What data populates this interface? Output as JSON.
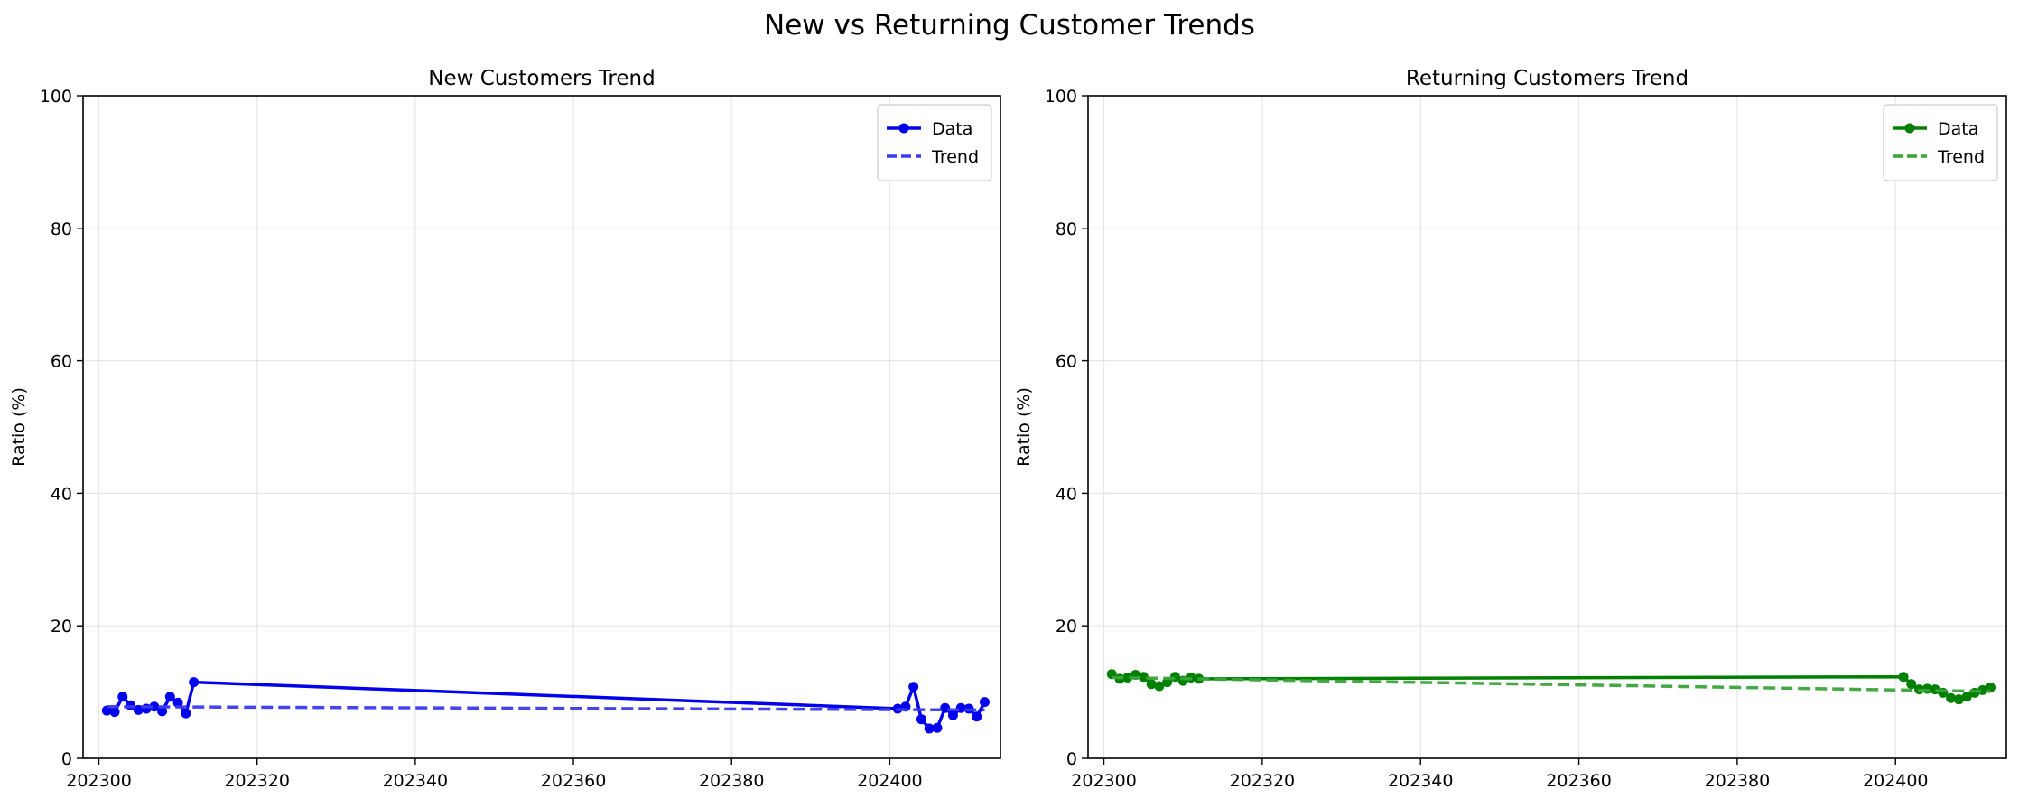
{
  "figure": {
    "title": "New vs Returning Customer Trends"
  },
  "chart_data": [
    {
      "type": "line",
      "title": "New Customers Trend",
      "xlabel": "",
      "ylabel": "Ratio (%)",
      "xlim": [
        202298,
        202414
      ],
      "ylim": [
        0,
        100
      ],
      "xticks": [
        202300,
        202320,
        202340,
        202360,
        202380,
        202400
      ],
      "yticks": [
        0,
        20,
        40,
        60,
        80,
        100
      ],
      "grid": true,
      "legend_position": "top-right",
      "series": [
        {
          "name": "Data",
          "style": "solid-markers",
          "color": "#0000ee",
          "x": [
            202301,
            202302,
            202303,
            202304,
            202305,
            202306,
            202307,
            202308,
            202309,
            202310,
            202311,
            202312,
            202401,
            202402,
            202403,
            202404,
            202405,
            202406,
            202407,
            202408,
            202409,
            202410,
            202411,
            202412
          ],
          "y": [
            7.2,
            7.0,
            9.3,
            8.0,
            7.3,
            7.5,
            7.8,
            7.1,
            9.3,
            8.4,
            6.8,
            11.5,
            7.5,
            7.8,
            10.8,
            5.9,
            4.5,
            4.6,
            7.6,
            6.5,
            7.6,
            7.5,
            6.3,
            8.5
          ]
        },
        {
          "name": "Trend",
          "style": "dashed",
          "color": "#3a3aee",
          "x": [
            202301,
            202412
          ],
          "y": [
            7.8,
            7.3
          ]
        }
      ]
    },
    {
      "type": "line",
      "title": "Returning Customers Trend",
      "xlabel": "",
      "ylabel": "Ratio (%)",
      "xlim": [
        202298,
        202414
      ],
      "ylim": [
        0,
        100
      ],
      "xticks": [
        202300,
        202320,
        202340,
        202360,
        202380,
        202400
      ],
      "yticks": [
        0,
        20,
        40,
        60,
        80,
        100
      ],
      "grid": true,
      "legend_position": "top-right",
      "series": [
        {
          "name": "Data",
          "style": "solid-markers",
          "color": "#008000",
          "x": [
            202301,
            202302,
            202303,
            202304,
            202305,
            202306,
            202307,
            202308,
            202309,
            202310,
            202311,
            202312,
            202401,
            202402,
            202403,
            202404,
            202405,
            202406,
            202407,
            202408,
            202409,
            202410,
            202411,
            202412
          ],
          "y": [
            12.7,
            12.0,
            12.2,
            12.6,
            12.3,
            11.2,
            10.9,
            11.5,
            12.3,
            11.7,
            12.2,
            12.0,
            12.3,
            11.2,
            10.4,
            10.5,
            10.4,
            9.9,
            9.1,
            8.9,
            9.3,
            9.9,
            10.3,
            10.7
          ]
        },
        {
          "name": "Trend",
          "style": "dashed",
          "color": "#3aa33a",
          "x": [
            202301,
            202412
          ],
          "y": [
            12.2,
            10.1
          ]
        }
      ]
    }
  ]
}
